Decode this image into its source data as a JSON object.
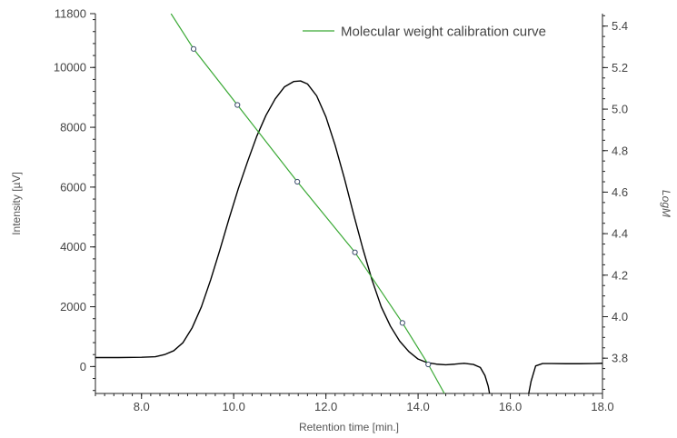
{
  "chart_data": {
    "type": "line",
    "xlabel": "Retention time [min.]",
    "ylabel_left": "Intensity [µV]",
    "ylabel_right": "LogM",
    "xlim": [
      7.0,
      18.0
    ],
    "ylim_left": [
      -900,
      11800
    ],
    "ylim_right": [
      3.63,
      5.46
    ],
    "x_ticks": [
      "8.0",
      "10.0",
      "12.0",
      "14.0",
      "16.0",
      "18.0"
    ],
    "y_left_ticks": [
      "0",
      "2000",
      "4000",
      "6000",
      "8000",
      "10000",
      "11800"
    ],
    "y_right_ticks": [
      "3.8",
      "4.0",
      "4.2",
      "4.4",
      "4.6",
      "4.8",
      "5.0",
      "5.2",
      "5.4"
    ],
    "grid": false,
    "legend_position": "top-right",
    "series": [
      {
        "axis": "left",
        "color": "#000000",
        "x": [
          7.0,
          7.5,
          8.0,
          8.3,
          8.5,
          8.7,
          8.9,
          9.1,
          9.3,
          9.5,
          9.7,
          9.9,
          10.1,
          10.3,
          10.5,
          10.7,
          10.9,
          11.1,
          11.3,
          11.45,
          11.6,
          11.8,
          12.0,
          12.2,
          12.4,
          12.6,
          12.8,
          13.0,
          13.2,
          13.4,
          13.6,
          13.8,
          14.0,
          14.2,
          14.4,
          14.6,
          14.8,
          15.0,
          15.2,
          15.35,
          15.45,
          15.52,
          15.55
        ],
        "y": [
          300,
          300,
          310,
          330,
          400,
          530,
          800,
          1300,
          2000,
          2900,
          3900,
          4950,
          5950,
          6850,
          7700,
          8400,
          8950,
          9350,
          9530,
          9550,
          9450,
          9050,
          8350,
          7400,
          6300,
          5100,
          3950,
          2900,
          2000,
          1350,
          850,
          500,
          250,
          130,
          80,
          60,
          80,
          110,
          70,
          -30,
          -300,
          -650,
          -900
        ]
      },
      {
        "axis": "left",
        "color": "#000000",
        "x": [
          16.4,
          16.45,
          16.55,
          16.7,
          16.9,
          17.2,
          17.5,
          17.8,
          18.0
        ],
        "y": [
          -900,
          -500,
          20,
          100,
          100,
          95,
          95,
          100,
          110
        ]
      },
      {
        "name": "Molecular weight calibration curve",
        "axis": "right",
        "color": "#3aa935",
        "x": [
          8.64,
          9.13,
          10.08,
          11.38,
          12.63,
          13.66,
          14.22,
          14.57
        ],
        "y": [
          5.46,
          5.29,
          5.02,
          4.65,
          4.31,
          3.97,
          3.77,
          3.63
        ]
      }
    ],
    "calibration_points": {
      "axis": "right",
      "x": [
        9.13,
        10.08,
        11.38,
        12.63,
        13.66,
        14.22
      ],
      "y": [
        5.29,
        5.02,
        4.65,
        4.31,
        3.97,
        3.77
      ]
    }
  }
}
